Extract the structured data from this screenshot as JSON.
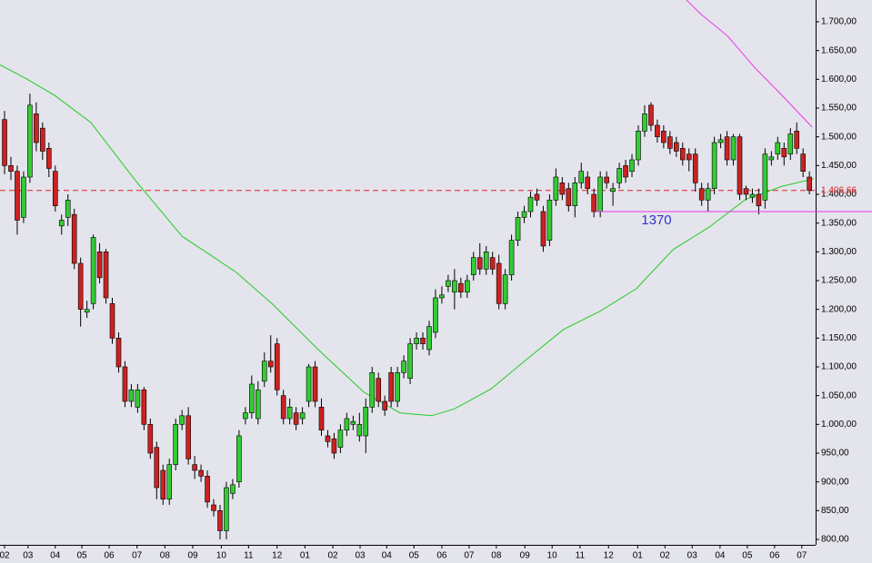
{
  "chart_data": {
    "type": "candlestick",
    "open": [
      1530,
      1450,
      1440,
      1360,
      1430,
      1540,
      1515,
      1480,
      1440,
      1345,
      1360,
      1365,
      1280,
      1195,
      1210,
      1300,
      1300,
      1210,
      1150,
      1100,
      1040,
      1030,
      1060,
      1000,
      960,
      920,
      870,
      930,
      1000,
      1015,
      930,
      920,
      910,
      860,
      850,
      815,
      880,
      900,
      1010,
      1020,
      1010,
      1075,
      1110,
      1140,
      1050,
      1010,
      1020,
      1010,
      1040,
      1100,
      1030,
      980,
      975,
      960,
      990,
      1000,
      980,
      980,
      1030,
      1080,
      1040,
      1090,
      1040,
      1090,
      1080,
      1140,
      1150,
      1130,
      1160,
      1220,
      1240,
      1230,
      1245,
      1230,
      1260,
      1290,
      1270,
      1290,
      1280,
      1210,
      1260,
      1320,
      1360,
      1370,
      1400,
      1370,
      1320,
      1390,
      1420,
      1410,
      1380,
      1420,
      1430,
      1400,
      1370,
      1430,
      1405,
      1420,
      1450,
      1440,
      1460,
      1510,
      1555,
      1520,
      1510,
      1500,
      1490,
      1480,
      1470,
      1470,
      1410,
      1390,
      1410,
      1490,
      1500,
      1460,
      1500,
      1410,
      1395,
      1400,
      1390,
      1460,
      1470,
      1480,
      1470,
      1510,
      1470,
      1430
    ],
    "high": [
      1545,
      1465,
      1450,
      1440,
      1575,
      1560,
      1525,
      1490,
      1450,
      1365,
      1400,
      1375,
      1290,
      1215,
      1330,
      1315,
      1305,
      1220,
      1160,
      1110,
      1070,
      1070,
      1065,
      1010,
      970,
      930,
      940,
      1010,
      1025,
      1030,
      945,
      930,
      920,
      870,
      860,
      900,
      905,
      990,
      1030,
      1085,
      1075,
      1125,
      1155,
      1150,
      1060,
      1045,
      1030,
      1030,
      1105,
      1110,
      1045,
      990,
      985,
      1000,
      1020,
      1015,
      1020,
      1045,
      1100,
      1090,
      1050,
      1100,
      1100,
      1120,
      1150,
      1160,
      1160,
      1180,
      1235,
      1240,
      1260,
      1270,
      1255,
      1260,
      1300,
      1315,
      1310,
      1300,
      1295,
      1270,
      1330,
      1370,
      1380,
      1405,
      1410,
      1380,
      1400,
      1445,
      1430,
      1420,
      1430,
      1455,
      1440,
      1410,
      1440,
      1440,
      1420,
      1455,
      1460,
      1470,
      1520,
      1555,
      1560,
      1530,
      1520,
      1510,
      1500,
      1490,
      1480,
      1480,
      1420,
      1420,
      1500,
      1505,
      1510,
      1505,
      1505,
      1415,
      1410,
      1410,
      1480,
      1475,
      1500,
      1490,
      1515,
      1525,
      1480,
      1440
    ],
    "low": [
      1435,
      1425,
      1330,
      1350,
      1420,
      1475,
      1460,
      1430,
      1370,
      1330,
      1345,
      1270,
      1170,
      1185,
      1200,
      1245,
      1210,
      1140,
      1090,
      1030,
      1030,
      1020,
      990,
      940,
      870,
      860,
      860,
      920,
      990,
      930,
      905,
      900,
      855,
      840,
      800,
      800,
      870,
      890,
      1000,
      1010,
      1000,
      1065,
      1090,
      1050,
      1000,
      1000,
      990,
      1000,
      1030,
      1030,
      980,
      960,
      940,
      950,
      980,
      990,
      970,
      950,
      1020,
      1030,
      1015,
      1030,
      1030,
      1080,
      1070,
      1130,
      1130,
      1120,
      1150,
      1210,
      1230,
      1200,
      1220,
      1220,
      1250,
      1260,
      1260,
      1260,
      1200,
      1200,
      1250,
      1310,
      1350,
      1360,
      1380,
      1300,
      1310,
      1380,
      1390,
      1370,
      1360,
      1410,
      1400,
      1360,
      1360,
      1410,
      1380,
      1410,
      1420,
      1430,
      1450,
      1500,
      1510,
      1490,
      1480,
      1470,
      1465,
      1450,
      1440,
      1405,
      1380,
      1370,
      1400,
      1480,
      1450,
      1450,
      1390,
      1390,
      1385,
      1365,
      1375,
      1450,
      1460,
      1450,
      1460,
      1470,
      1430,
      1400
    ],
    "close": [
      1450,
      1440,
      1355,
      1430,
      1555,
      1490,
      1475,
      1445,
      1380,
      1355,
      1390,
      1280,
      1200,
      1200,
      1325,
      1255,
      1220,
      1150,
      1100,
      1040,
      1060,
      1060,
      1000,
      950,
      890,
      870,
      930,
      1000,
      1015,
      940,
      920,
      910,
      865,
      850,
      815,
      890,
      895,
      980,
      1020,
      1070,
      1060,
      1110,
      1100,
      1060,
      1010,
      1030,
      1000,
      1020,
      1100,
      1040,
      990,
      970,
      950,
      990,
      1010,
      1005,
      1000,
      1030,
      1090,
      1040,
      1025,
      1040,
      1090,
      1110,
      1140,
      1150,
      1140,
      1170,
      1220,
      1225,
      1250,
      1250,
      1230,
      1250,
      1290,
      1270,
      1300,
      1270,
      1210,
      1260,
      1320,
      1360,
      1370,
      1395,
      1390,
      1310,
      1390,
      1430,
      1400,
      1380,
      1420,
      1440,
      1410,
      1370,
      1430,
      1420,
      1410,
      1445,
      1430,
      1460,
      1510,
      1540,
      1520,
      1500,
      1490,
      1480,
      1475,
      1460,
      1460,
      1420,
      1390,
      1410,
      1490,
      1495,
      1460,
      1500,
      1400,
      1400,
      1400,
      1380,
      1470,
      1465,
      1490,
      1465,
      1505,
      1480,
      1440,
      1406.66
    ],
    "up_color": "#33cc33",
    "down_color": "#cc2222",
    "series": [
      {
        "color": "#22cc22",
        "x": [
          -0.7,
          3.6,
          7.9,
          13.6,
          20.8,
          28.0,
          32.3,
          36.6,
          42.3,
          49.5,
          56.7,
          62.4,
          67.4,
          71.0,
          76.8,
          82.5,
          88.2,
          94.0,
          99.7,
          105.5,
          111.2,
          116.9,
          122.7,
          127.7
        ],
        "values": [
          1625,
          1600,
          1572,
          1525,
          1422,
          1327,
          1296,
          1264,
          1209,
          1130,
          1056,
          1020,
          1015,
          1027,
          1062,
          1114,
          1165,
          1197,
          1236,
          1304,
          1343,
          1391,
          1414,
          1427
        ]
      },
      {
        "color": "#ee33ee",
        "x": [
          107.6,
          109.8,
          114.1,
          118.4,
          122.7,
          127.4
        ],
        "values": [
          1738,
          1714,
          1675,
          1620,
          1572,
          1517
        ]
      }
    ],
    "last_price": {
      "value": 1406.66,
      "label": "1.406,66",
      "color": "#dd2222"
    },
    "support": {
      "value": 1370,
      "label": "1370",
      "from": 93.3,
      "color": "#ee33ee",
      "label_color": "#3333cc"
    },
    "xlim": [
      -0.72,
      127.98
    ],
    "ylim": [
      790.5,
      1737.9
    ],
    "yticks": [
      {
        "value": 800,
        "label": "800,00"
      },
      {
        "value": 850,
        "label": "850,00"
      },
      {
        "value": 900,
        "label": "900,00"
      },
      {
        "value": 950,
        "label": "950,00"
      },
      {
        "value": 1000,
        "label": "1.000,00"
      },
      {
        "value": 1050,
        "label": "1.050,00"
      },
      {
        "value": 1100,
        "label": "1.100,00"
      },
      {
        "value": 1150,
        "label": "1.150,00"
      },
      {
        "value": 1200,
        "label": "1.200,00"
      },
      {
        "value": 1250,
        "label": "1.250,00"
      },
      {
        "value": 1300,
        "label": "1.300,00"
      },
      {
        "value": 1350,
        "label": "1.350,00"
      },
      {
        "value": 1400,
        "label": "1.400,00"
      },
      {
        "value": 1450,
        "label": "1.450,00"
      },
      {
        "value": 1500,
        "label": "1.500,00"
      },
      {
        "value": 1550,
        "label": "1.550,00"
      },
      {
        "value": 1600,
        "label": "1.600,00"
      },
      {
        "value": 1650,
        "label": "1.650,00"
      },
      {
        "value": 1700,
        "label": "1.700,00"
      }
    ],
    "xticks": [
      {
        "value": 0,
        "label": "02"
      },
      {
        "value": 3.7,
        "label": "03"
      },
      {
        "value": 8.0,
        "label": "04"
      },
      {
        "value": 12.2,
        "label": "05"
      },
      {
        "value": 16.5,
        "label": "06"
      },
      {
        "value": 20.9,
        "label": "07"
      },
      {
        "value": 25.3,
        "label": "08"
      },
      {
        "value": 29.7,
        "label": "09"
      },
      {
        "value": 34.2,
        "label": "10"
      },
      {
        "value": 38.5,
        "label": "11"
      },
      {
        "value": 43.0,
        "label": "12"
      },
      {
        "value": 47.4,
        "label": "01"
      },
      {
        "value": 51.8,
        "label": "02"
      },
      {
        "value": 56.1,
        "label": "03"
      },
      {
        "value": 60.3,
        "label": "04"
      },
      {
        "value": 64.6,
        "label": "05"
      },
      {
        "value": 69.0,
        "label": "06"
      },
      {
        "value": 73.3,
        "label": "07"
      },
      {
        "value": 77.6,
        "label": "08"
      },
      {
        "value": 82.1,
        "label": "09"
      },
      {
        "value": 86.4,
        "label": "10"
      },
      {
        "value": 90.8,
        "label": "11"
      },
      {
        "value": 95.3,
        "label": "12"
      },
      {
        "value": 99.9,
        "label": "01"
      },
      {
        "value": 104.2,
        "label": "02"
      },
      {
        "value": 108.5,
        "label": "03"
      },
      {
        "value": 112.9,
        "label": "04"
      },
      {
        "value": 117.2,
        "label": "05"
      },
      {
        "value": 121.5,
        "label": "06"
      },
      {
        "value": 125.8,
        "label": "07"
      }
    ]
  }
}
